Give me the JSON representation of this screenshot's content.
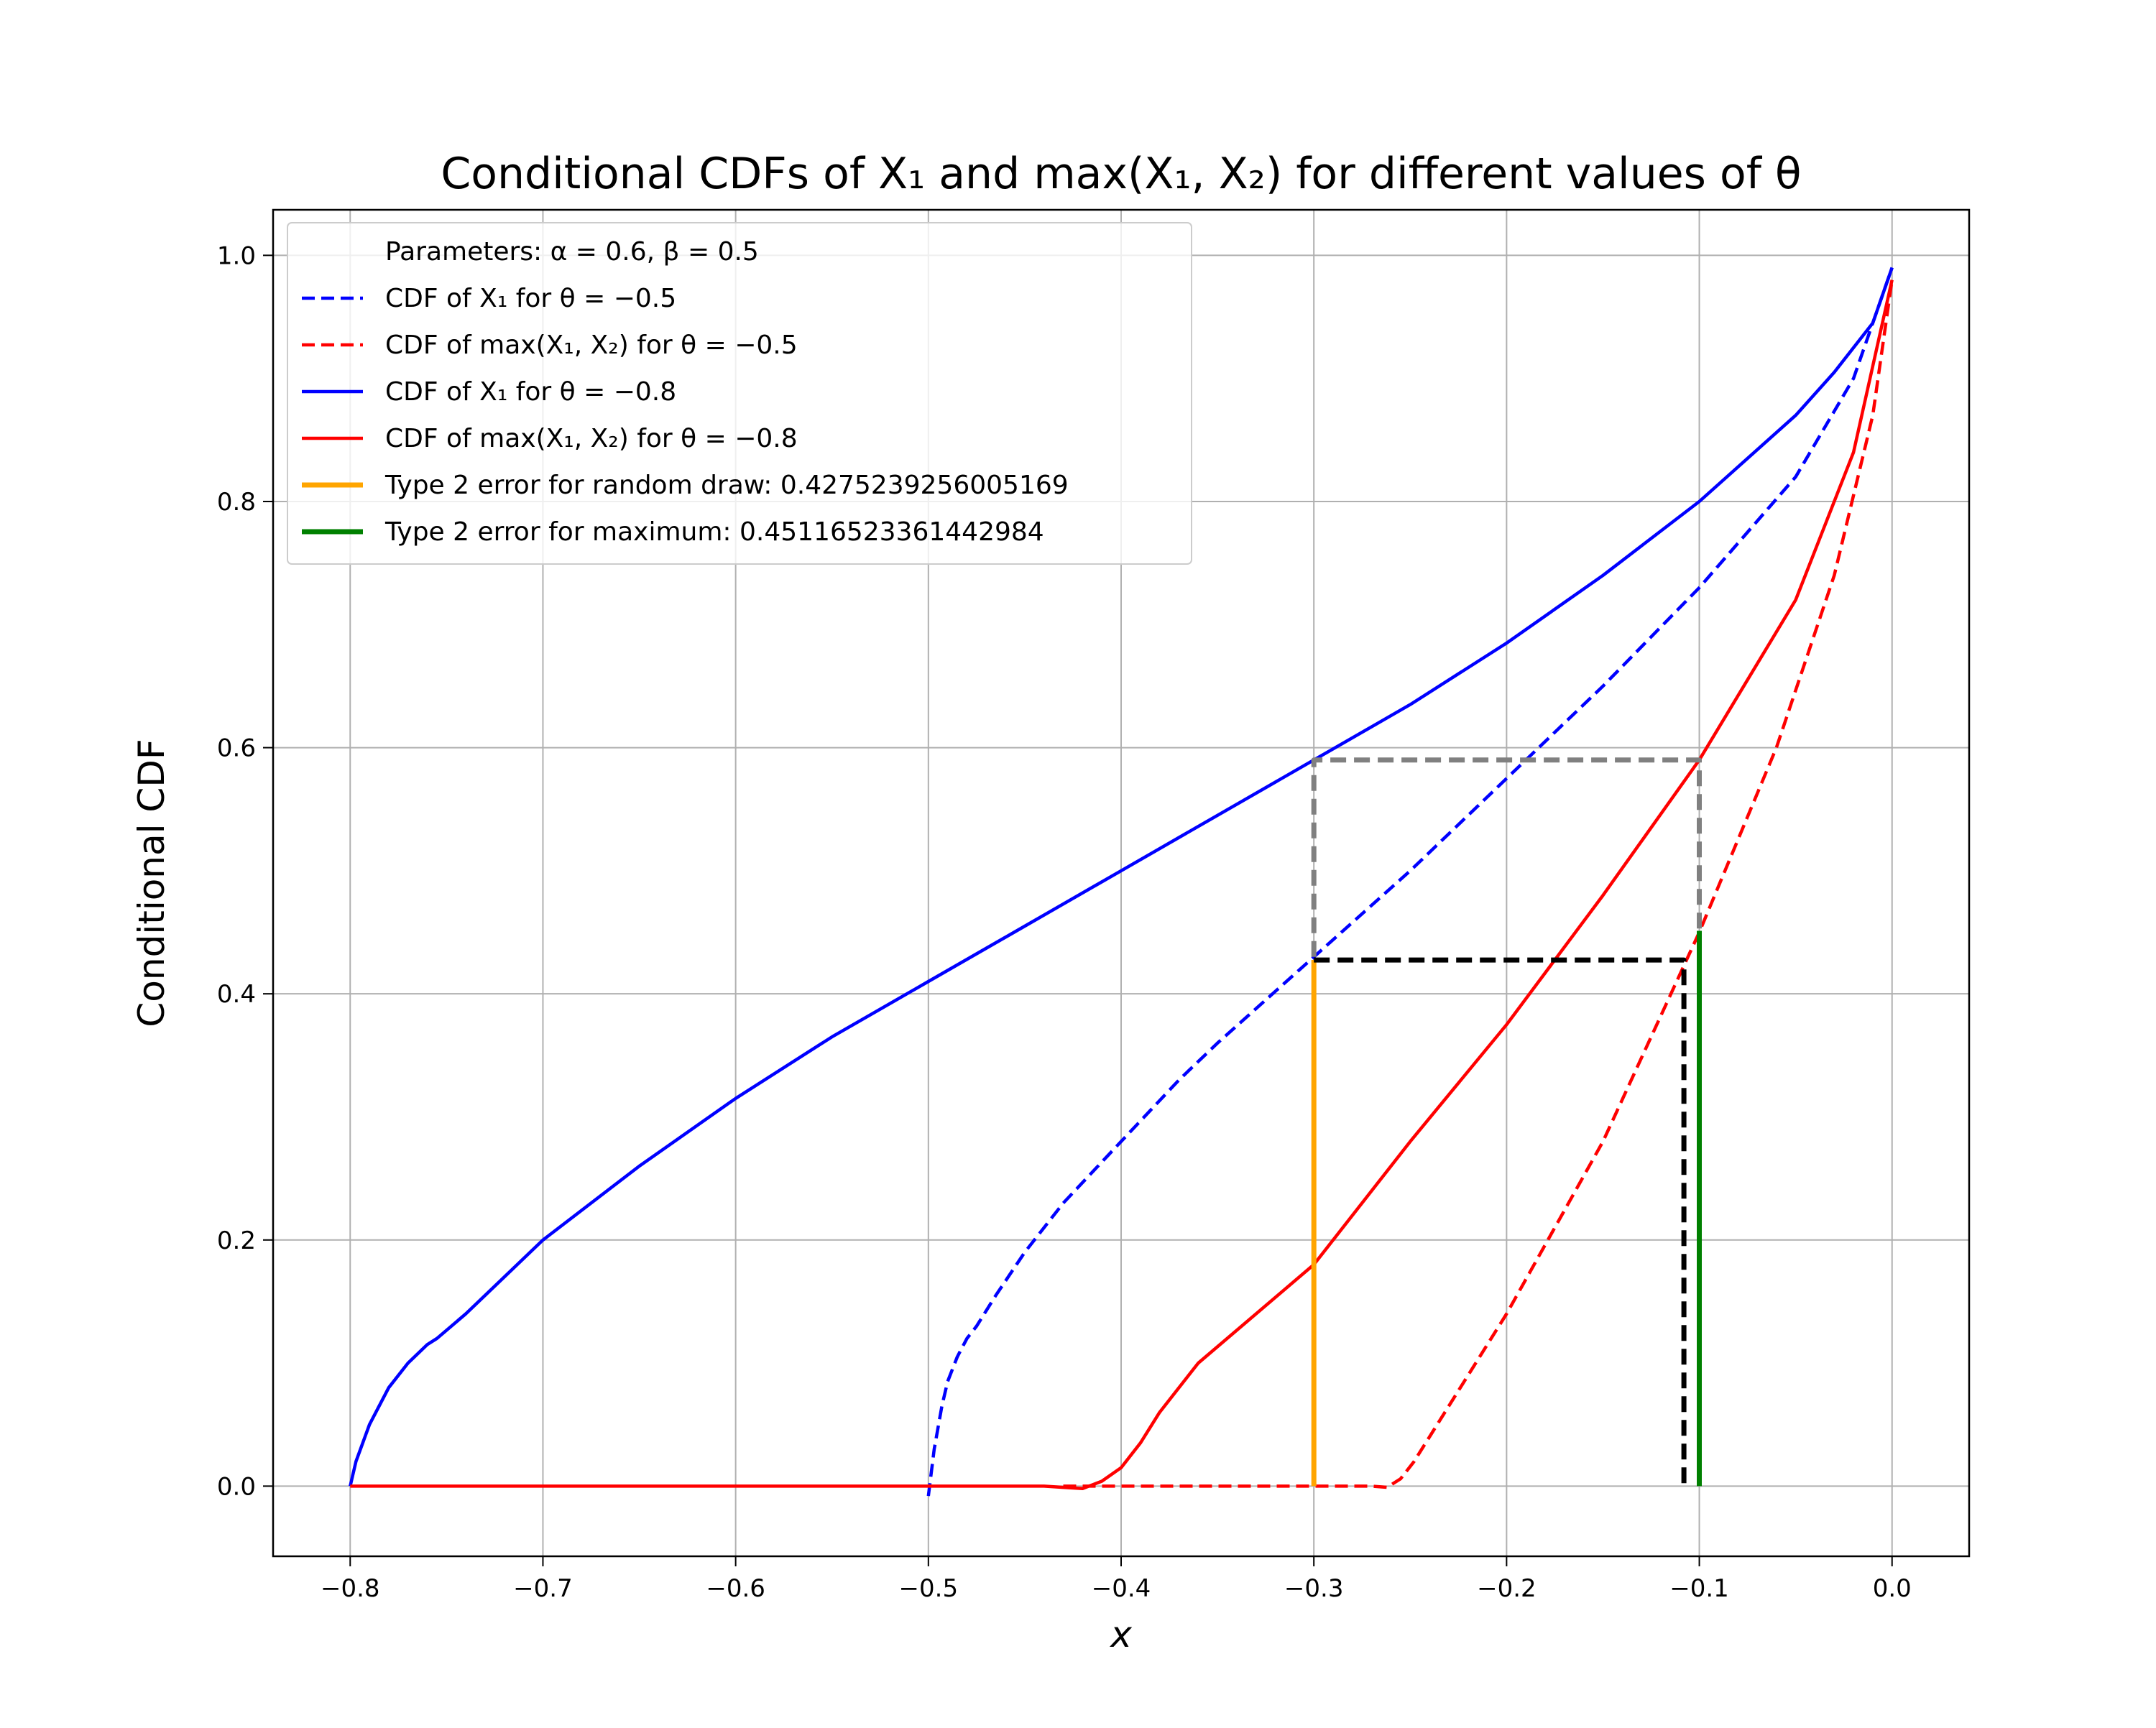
{
  "chart_data": {
    "type": "line",
    "title": "Conditional CDFs of X₁ and max(X₁, X₂) for different values of θ",
    "xlabel": "x",
    "ylabel": "Conditional CDF",
    "xlim": [
      -0.84,
      0.04
    ],
    "ylim": [
      -0.057,
      1.037
    ],
    "grid": true,
    "legend_position": "top-left",
    "x_ticks": [
      {
        "value": -0.8,
        "label": "−0.8"
      },
      {
        "value": -0.7,
        "label": "−0.7"
      },
      {
        "value": -0.6,
        "label": "−0.6"
      },
      {
        "value": -0.5,
        "label": "−0.5"
      },
      {
        "value": -0.4,
        "label": "−0.4"
      },
      {
        "value": -0.3,
        "label": "−0.3"
      },
      {
        "value": -0.2,
        "label": "−0.2"
      },
      {
        "value": -0.1,
        "label": "−0.1"
      },
      {
        "value": 0.0,
        "label": "0.0"
      }
    ],
    "y_ticks": [
      {
        "value": 0.0,
        "label": "0.0"
      },
      {
        "value": 0.2,
        "label": "0.2"
      },
      {
        "value": 0.4,
        "label": "0.4"
      },
      {
        "value": 0.6,
        "label": "0.6"
      },
      {
        "value": 0.8,
        "label": "0.8"
      },
      {
        "value": 1.0,
        "label": "1.0"
      }
    ],
    "legend_header": "Parameters: α = 0.6, β = 0.5",
    "series": [
      {
        "name": "CDF of X₁ for θ = −0.5",
        "color": "#0000ff",
        "dash": "dashed",
        "in_legend": true,
        "x": [
          -0.5,
          -0.497,
          -0.493,
          -0.49,
          -0.485,
          -0.48,
          -0.475,
          -0.465,
          -0.45,
          -0.43,
          -0.4,
          -0.37,
          -0.35,
          -0.3,
          -0.25,
          -0.2,
          -0.15,
          -0.1,
          -0.05,
          -0.02,
          0.0
        ],
        "y": [
          -0.008,
          0.03,
          0.065,
          0.085,
          0.105,
          0.12,
          0.13,
          0.155,
          0.19,
          0.23,
          0.28,
          0.33,
          0.36,
          0.43,
          0.5,
          0.575,
          0.65,
          0.73,
          0.82,
          0.9,
          0.99
        ]
      },
      {
        "name": "CDF of max(X₁, X₂) for θ = −0.5",
        "color": "#ff0000",
        "dash": "dashed",
        "in_legend": true,
        "x": [
          -0.43,
          -0.3,
          -0.27,
          -0.262,
          -0.255,
          -0.248,
          -0.24,
          -0.2,
          -0.15,
          -0.1,
          -0.06,
          -0.03,
          -0.01,
          0.0
        ],
        "y": [
          0.0,
          0.0,
          0.0,
          -0.001,
          0.006,
          0.02,
          0.04,
          0.14,
          0.28,
          0.45,
          0.6,
          0.74,
          0.87,
          0.98
        ]
      },
      {
        "name": "CDF of X₁ for θ = −0.8",
        "color": "#0000ff",
        "dash": "solid",
        "in_legend": true,
        "x": [
          -0.8,
          -0.797,
          -0.79,
          -0.78,
          -0.77,
          -0.76,
          -0.755,
          -0.74,
          -0.7,
          -0.65,
          -0.6,
          -0.55,
          -0.5,
          -0.45,
          -0.4,
          -0.35,
          -0.3,
          -0.25,
          -0.2,
          -0.15,
          -0.1,
          -0.05,
          -0.03,
          -0.01,
          0.0
        ],
        "y": [
          0.0,
          0.02,
          0.05,
          0.08,
          0.1,
          0.115,
          0.12,
          0.14,
          0.2,
          0.26,
          0.315,
          0.365,
          0.41,
          0.455,
          0.5,
          0.545,
          0.59,
          0.635,
          0.685,
          0.74,
          0.8,
          0.87,
          0.905,
          0.945,
          0.99
        ]
      },
      {
        "name": "CDF of max(X₁, X₂) for θ = −0.8",
        "color": "#ff0000",
        "dash": "solid",
        "in_legend": true,
        "x": [
          -0.8,
          -0.5,
          -0.44,
          -0.43,
          -0.42,
          -0.41,
          -0.4,
          -0.39,
          -0.38,
          -0.36,
          -0.3,
          -0.25,
          -0.2,
          -0.15,
          -0.1,
          -0.05,
          -0.02,
          0.0
        ],
        "y": [
          0.0,
          0.0,
          0.0,
          -0.001,
          -0.002,
          0.004,
          0.015,
          0.035,
          0.06,
          0.1,
          0.18,
          0.28,
          0.375,
          0.48,
          0.59,
          0.72,
          0.84,
          0.98
        ]
      },
      {
        "name": "Type 2 error for random draw: 0.4275239256005169",
        "color": "#ffa500",
        "dash": "solid",
        "width": "thick",
        "in_legend": true,
        "x": [
          -0.3,
          -0.3
        ],
        "y": [
          0.0,
          0.4275239256005169
        ]
      },
      {
        "name": "Type 2 error for maximum: 0.45116523361442984",
        "color": "#008000",
        "dash": "solid",
        "width": "thick",
        "in_legend": true,
        "x": [
          -0.1,
          -0.1
        ],
        "y": [
          0.0,
          0.45116523361442984
        ]
      },
      {
        "color": "#808080",
        "dash": "dashed",
        "width": "thick",
        "in_legend": false,
        "x": [
          -0.3,
          -0.3,
          -0.1,
          -0.1
        ],
        "y": [
          0.43,
          0.59,
          0.59,
          0.45
        ]
      },
      {
        "color": "#000000",
        "dash": "dashed",
        "width": "thick",
        "in_legend": false,
        "x": [
          -0.3,
          -0.108,
          -0.108
        ],
        "y": [
          0.4275,
          0.4275,
          0.0
        ]
      }
    ]
  }
}
